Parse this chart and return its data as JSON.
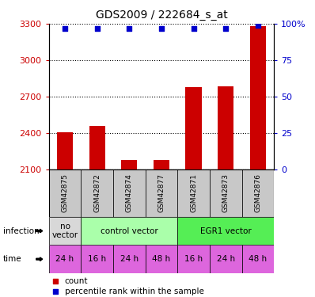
{
  "title": "GDS2009 / 222684_s_at",
  "samples": [
    "GSM42875",
    "GSM42872",
    "GSM42874",
    "GSM42877",
    "GSM42871",
    "GSM42873",
    "GSM42876"
  ],
  "counts": [
    2405,
    2460,
    2175,
    2180,
    2780,
    2785,
    3280
  ],
  "percentile_ranks": [
    97,
    97,
    97,
    97,
    97,
    97,
    99
  ],
  "ylim_left": [
    2100,
    3300
  ],
  "ylim_right": [
    0,
    100
  ],
  "yticks_left": [
    2100,
    2400,
    2700,
    3000,
    3300
  ],
  "yticks_right": [
    0,
    25,
    50,
    75,
    100
  ],
  "ytick_labels_right": [
    "0",
    "25",
    "50",
    "75",
    "100%"
  ],
  "bar_color": "#cc0000",
  "dot_color": "#0000cc",
  "infection_rows": [
    {
      "start": 0,
      "end": 1,
      "label": "no\nvector",
      "color": "#d8d8d8"
    },
    {
      "start": 1,
      "end": 4,
      "label": "control vector",
      "color": "#aaffaa"
    },
    {
      "start": 4,
      "end": 7,
      "label": "EGR1 vector",
      "color": "#55ee55"
    }
  ],
  "time_labels": [
    "24 h",
    "16 h",
    "24 h",
    "48 h",
    "16 h",
    "24 h",
    "48 h"
  ],
  "time_color": "#dd66dd",
  "sample_bg_color": "#c8c8c8",
  "bar_width": 0.5,
  "grid_color": "#888888",
  "left_tick_color": "#cc0000",
  "right_tick_color": "#0000cc",
  "legend_count_color": "#cc0000",
  "legend_pct_color": "#0000cc"
}
